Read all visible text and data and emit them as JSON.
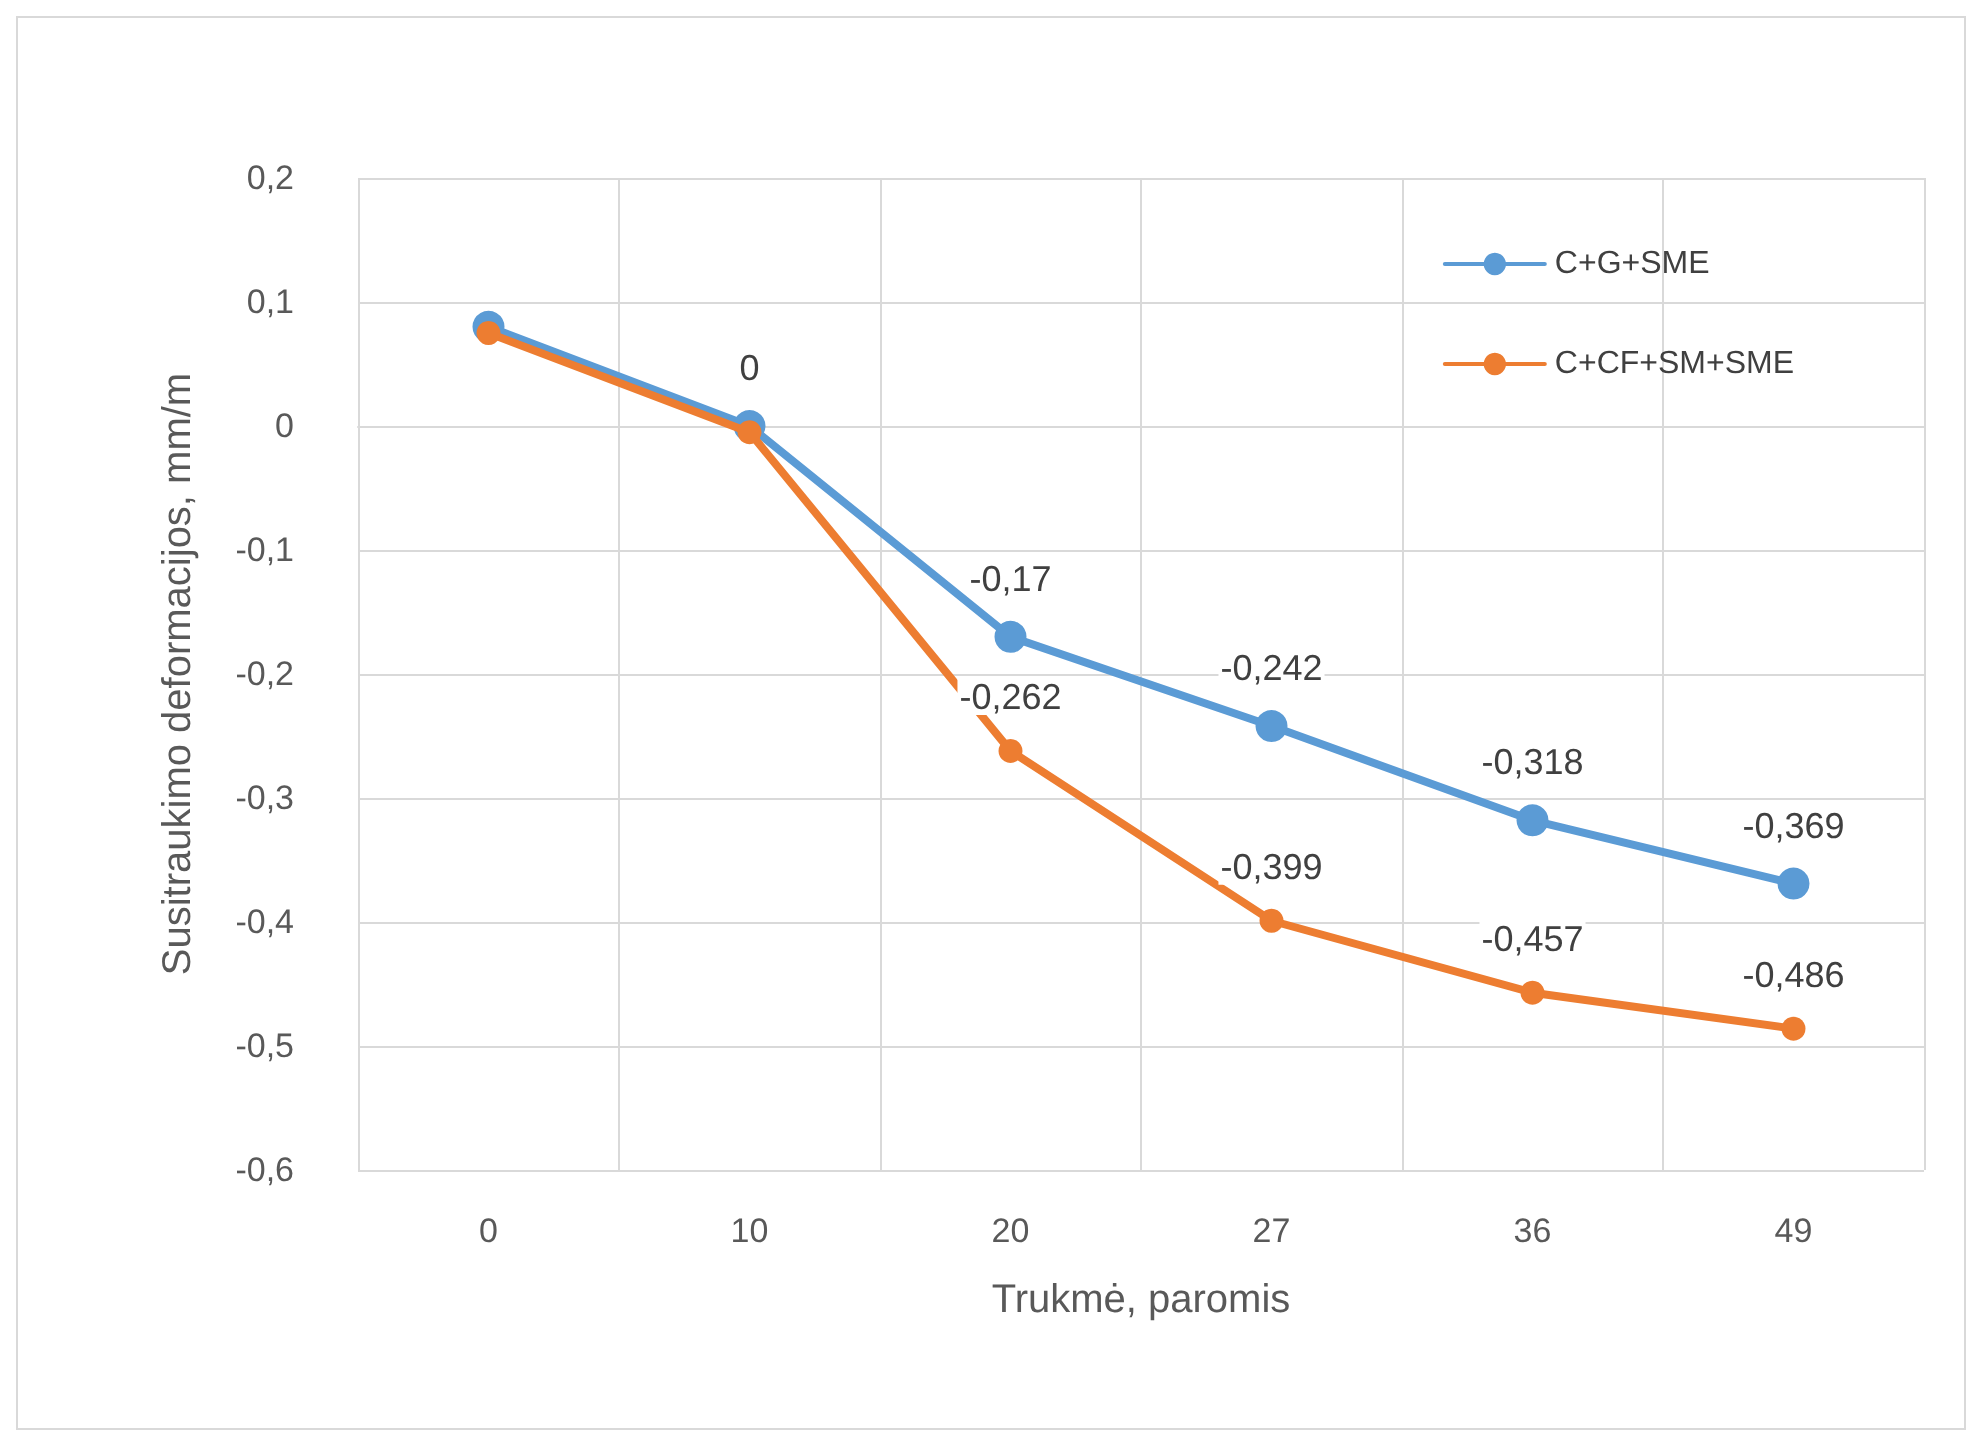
{
  "chart_data": {
    "type": "line",
    "xlabel": "Trukmė, paromis",
    "ylabel": "Susitraukimo deformacijos, mm/m",
    "categories": [
      "0",
      "10",
      "20",
      "27",
      "36",
      "49"
    ],
    "series": [
      {
        "name": "C+G+SME",
        "color": "#5b9bd5",
        "values": [
          0.08,
          0,
          -0.17,
          -0.242,
          -0.318,
          -0.369
        ],
        "value_labels": [
          null,
          "0",
          "-0,17",
          "-0,242",
          "-0,318",
          "-0,369"
        ]
      },
      {
        "name": "C+CF+SM+SME",
        "color": "#ed7d31",
        "values": [
          0.075,
          -0.005,
          -0.262,
          -0.399,
          -0.457,
          -0.486
        ],
        "value_labels": [
          null,
          null,
          "-0,262",
          "-0,399",
          "-0,457",
          "-0,486"
        ]
      }
    ],
    "ylim": [
      -0.6,
      0.2
    ],
    "yticks": [
      {
        "value": -0.6,
        "label": "-0,6"
      },
      {
        "value": -0.5,
        "label": "-0,5"
      },
      {
        "value": -0.4,
        "label": "-0,4"
      },
      {
        "value": -0.3,
        "label": "-0,3"
      },
      {
        "value": -0.2,
        "label": "-0,2"
      },
      {
        "value": -0.1,
        "label": "-0,1"
      },
      0,
      {
        "value": 0.1,
        "label": "0,1"
      },
      {
        "value": 0.2,
        "label": "0,2"
      }
    ],
    "grid": true,
    "legend": "top right",
    "marker": "circle",
    "line_style": "solid"
  }
}
